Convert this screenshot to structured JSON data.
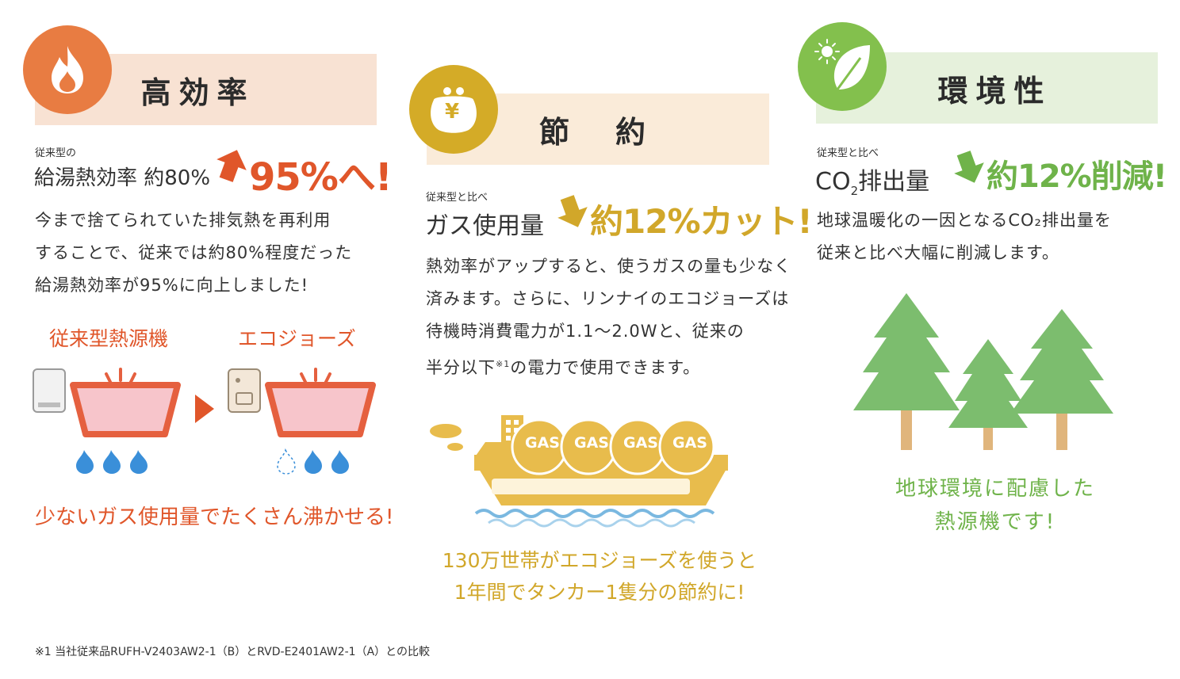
{
  "colors": {
    "orange": "#e87c42",
    "orange_text": "#e0562a",
    "orange_banner": "#f8e2d3",
    "gold": "#d4ab27",
    "gold_text": "#d1a72a",
    "gold_banner": "#faebd9",
    "green": "#83c04d",
    "green_text": "#6fb34a",
    "green_banner": "#e6f1dc",
    "tree": "#7cbd6e",
    "trunk": "#e0b57c",
    "flame_blue": "#3a8fd9",
    "tub_red": "#e5603f",
    "water_pink": "#f7c5cb"
  },
  "col1": {
    "icon": "flame-icon",
    "heading": "高効率",
    "pre_label": "従来型の",
    "metric_label": "給湯熱効率 約80%",
    "arrow": "up-arrow-icon",
    "metric_value": "95%へ!",
    "body_lines": [
      "今まで捨てられていた排気熱を再利用",
      "することで、従来では約80%程度だった",
      "給湯熱効率が95%に向上しました!"
    ],
    "compare_left": "従来型熱源機",
    "compare_right": "エコジョーズ",
    "caption": "少ないガス使用量でたくさん沸かせる!"
  },
  "col2": {
    "icon": "purse-yen-icon",
    "yen": "¥",
    "heading": "節　約",
    "pre_label": "従来型と比べ",
    "metric_label": "ガス使用量",
    "arrow": "down-arrow-icon",
    "metric_value": "約12%カット!",
    "body_lines": [
      "熱効率がアップすると、使うガスの量も少なく",
      "済みます。さらに、リンナイのエコジョーズは",
      "待機時消費電力が1.1～2.0Wと、従来の"
    ],
    "body_last_pre": "半分以下",
    "body_last_sup": "※1",
    "body_last_post": "の電力で使用できます。",
    "gas_labels": [
      "GAS",
      "GAS",
      "GAS",
      "GAS"
    ],
    "caption_lines": [
      "130万世帯がエコジョーズを使うと",
      "1年間でタンカー1隻分の節約に!"
    ]
  },
  "col3": {
    "icon": "leaf-sun-icon",
    "heading": "環境性",
    "pre_label": "従来型と比べ",
    "metric_label_main": "CO",
    "metric_label_sub": "2",
    "metric_label_post": "排出量",
    "arrow": "down-arrow-icon",
    "metric_value": "約12%削減!",
    "body_lines": [
      "地球温暖化の一因となるCO₂排出量を",
      "従来と比べ大幅に削減します。"
    ],
    "caption_lines": [
      "地球環境に配慮した",
      "熱源機です!"
    ]
  },
  "footnote": "※1  当社従来品RUFH-V2403AW2-1（B）とRVD-E2401AW2-1（A）との比較"
}
